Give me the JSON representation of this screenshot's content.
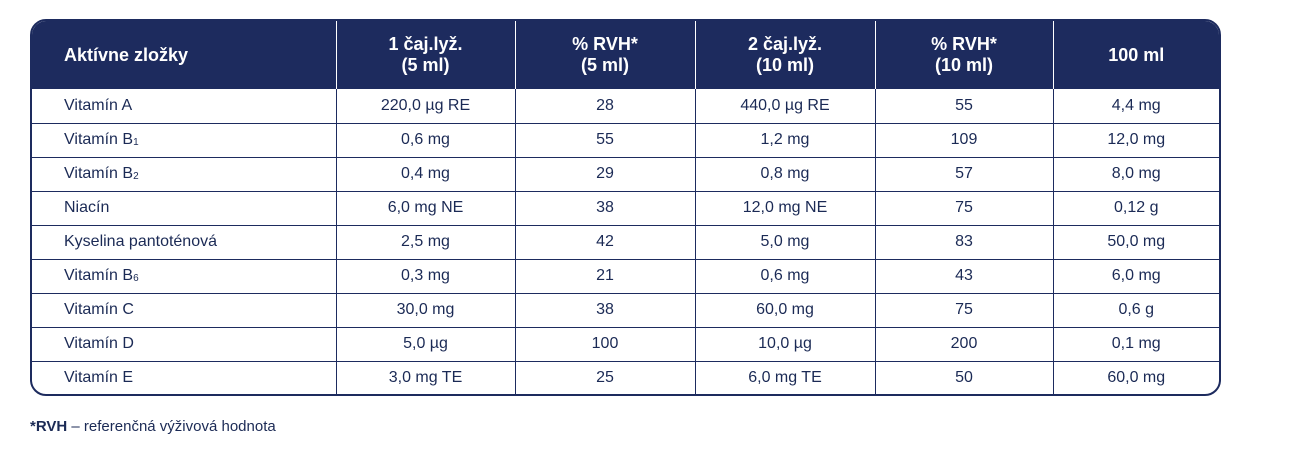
{
  "table": {
    "headers": [
      [
        "Aktívne zložky"
      ],
      [
        "1 čaj.lyž.",
        "(5 ml)"
      ],
      [
        "% RVH*",
        "(5 ml)"
      ],
      [
        "2 čaj.lyž.",
        "(10 ml)"
      ],
      [
        "% RVH*",
        "(10 ml)"
      ],
      [
        "100 ml"
      ]
    ],
    "rows": [
      {
        "name": "Vitamín A",
        "sub": "",
        "values": [
          "220,0 µg RE",
          "28",
          "440,0 µg RE",
          "55",
          "4,4 mg"
        ]
      },
      {
        "name": "Vitamín B",
        "sub": "1",
        "values": [
          "0,6 mg",
          "55",
          "1,2 mg",
          "109",
          "12,0 mg"
        ]
      },
      {
        "name": "Vitamín B",
        "sub": "2",
        "values": [
          "0,4 mg",
          "29",
          "0,8 mg",
          "57",
          "8,0 mg"
        ]
      },
      {
        "name": "Niacín",
        "sub": "",
        "values": [
          "6,0 mg NE",
          "38",
          "12,0 mg NE",
          "75",
          "0,12 g"
        ]
      },
      {
        "name": "Kyselina pantoténová",
        "sub": "",
        "values": [
          "2,5 mg",
          "42",
          "5,0 mg",
          "83",
          "50,0 mg"
        ]
      },
      {
        "name": "Vitamín B",
        "sub": "6",
        "values": [
          "0,3 mg",
          "21",
          "0,6 mg",
          "43",
          "6,0 mg"
        ]
      },
      {
        "name": "Vitamín C",
        "sub": "",
        "values": [
          "30,0 mg",
          "38",
          "60,0 mg",
          "75",
          "0,6 g"
        ]
      },
      {
        "name": "Vitamín D",
        "sub": "",
        "values": [
          "5,0 µg",
          "100",
          "10,0 µg",
          "200",
          "0,1 mg"
        ]
      },
      {
        "name": "Vitamín E",
        "sub": "",
        "values": [
          "3,0 mg TE",
          "25",
          "6,0 mg TE",
          "50",
          "60,0 mg"
        ]
      }
    ]
  },
  "footnote": {
    "term": "*RVH",
    "text": " – referenčná výživová hodnota"
  },
  "colors": {
    "header_bg": "#1d2b5e",
    "header_text": "#ffffff",
    "border": "#1d2b5e",
    "body_text": "#1b2a55"
  }
}
